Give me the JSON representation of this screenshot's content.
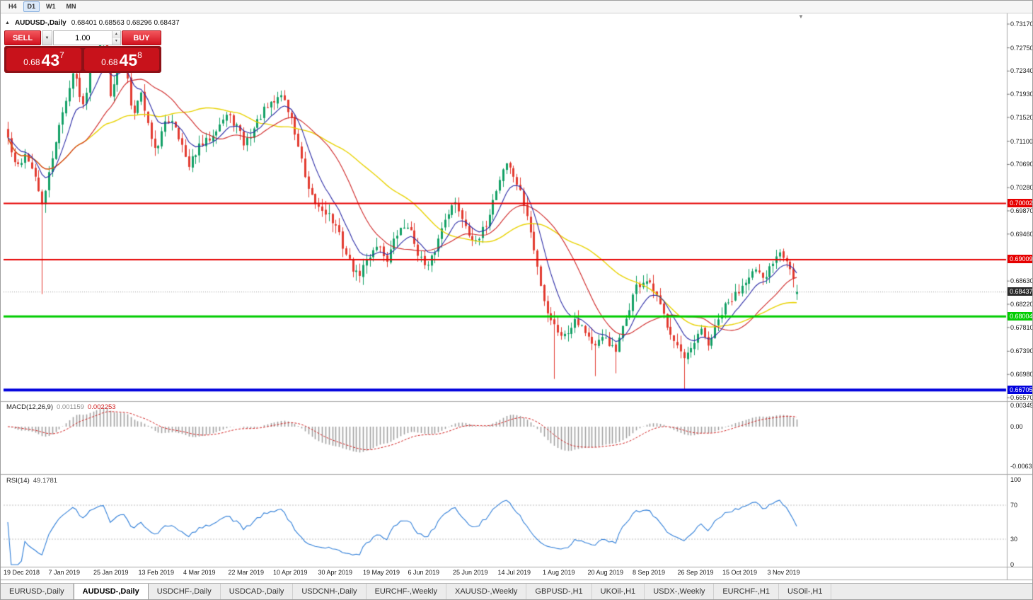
{
  "toolbar": {
    "timeframes": [
      {
        "label": "H4",
        "active": false
      },
      {
        "label": "D1",
        "active": true
      },
      {
        "label": "W1",
        "active": false
      },
      {
        "label": "MN",
        "active": false
      }
    ]
  },
  "icons": {
    "collapse": "▲",
    "dropdown": "▼",
    "spin_up": "▴",
    "spin_down": "▾",
    "scroll_marker": "▼"
  },
  "chart": {
    "title": {
      "symbol_period": "AUDUSD-,Daily",
      "ohlc": "0.68401 0.68563 0.68296 0.68437"
    },
    "trade_panel": {
      "sell_label": "SELL",
      "buy_label": "BUY",
      "volume": "1.00",
      "sell_price": {
        "base": "0.68",
        "big": "43",
        "sup": "7"
      },
      "buy_price": {
        "base": "0.68",
        "big": "45",
        "sup": "8"
      }
    },
    "y_axis_ticks": [
      "0.73170",
      "0.72750",
      "0.72340",
      "0.71930",
      "0.71520",
      "0.71100",
      "0.70690",
      "0.70280",
      "0.69870",
      "0.69460",
      "0.68630",
      "0.68220",
      "0.67810",
      "0.67390",
      "0.66980",
      "0.66570"
    ],
    "price_lines": [
      {
        "value": 0.70002,
        "label": "0.70002",
        "color": "#e60000",
        "width": 2
      },
      {
        "value": 0.69009,
        "label": "0.69009",
        "color": "#e60000",
        "width": 2
      },
      {
        "value": 0.68004,
        "label": "0.68004",
        "color": "#00cc00",
        "width": 3
      },
      {
        "value": 0.66705,
        "label": "0.66705",
        "color": "#0000dd",
        "width": 4
      }
    ],
    "current_price": {
      "value": 0.68437,
      "label": "0.68437",
      "color": "#2b2b2b"
    }
  },
  "macd": {
    "name": "MACD(12,26,9)",
    "value_main": "0.001159",
    "value_signal": "0.002253",
    "axis": [
      {
        "label": "0.00349",
        "value": 0.00349
      },
      {
        "label": "0.00",
        "value": 0
      },
      {
        "label": "-0.00637",
        "value": -0.00637
      }
    ]
  },
  "rsi": {
    "name": "RSI(14)",
    "value": "49.1781",
    "axis": [
      {
        "label": "100",
        "value": 100
      },
      {
        "label": "70",
        "value": 70
      },
      {
        "label": "30",
        "value": 30
      },
      {
        "label": "0",
        "value": 0
      }
    ],
    "levels": [
      70,
      30
    ]
  },
  "x_axis": {
    "dates": [
      "19 Dec 2018",
      "7 Jan 2019",
      "25 Jan 2019",
      "13 Feb 2019",
      "4 Mar 2019",
      "22 Mar 2019",
      "10 Apr 2019",
      "30 Apr 2019",
      "19 May 2019",
      "6 Jun 2019",
      "25 Jun 2019",
      "14 Jul 2019",
      "1 Aug 2019",
      "20 Aug 2019",
      "8 Sep 2019",
      "26 Sep 2019",
      "15 Oct 2019",
      "3 Nov 2019"
    ]
  },
  "tabs": [
    {
      "label": "EURUSD-,Daily",
      "active": false
    },
    {
      "label": "AUDUSD-,Daily",
      "active": true
    },
    {
      "label": "USDCHF-,Daily",
      "active": false
    },
    {
      "label": "USDCAD-,Daily",
      "active": false
    },
    {
      "label": "USDCNH-,Daily",
      "active": false
    },
    {
      "label": "EURCHF-,Weekly",
      "active": false
    },
    {
      "label": "XAUUSD-,Weekly",
      "active": false
    },
    {
      "label": "GBPUSD-,H1",
      "active": false
    },
    {
      "label": "UKOil-,H1",
      "active": false
    },
    {
      "label": "USDX-,Weekly",
      "active": false
    },
    {
      "label": "EURCHF-,H1",
      "active": false
    },
    {
      "label": "USOil-,H1",
      "active": false
    }
  ],
  "colors": {
    "up": "#13a066",
    "down": "#e23b30",
    "ma_fast": "#2b2ba6",
    "ma_mid": "#cf2525",
    "ma_slow": "#e8d200",
    "macd_hist": "#a0a0a0",
    "macd_signal": "#d02020",
    "rsi_line": "#2f7ed8",
    "level_dash": "#bdbdbd",
    "separator": "#a8a8a8",
    "axis_text": "#1a1a1a"
  },
  "chart_data": {
    "type": "candlestick",
    "symbol": "AUDUSD",
    "timeframe": "Daily",
    "bars": 232,
    "last_ohlc": {
      "open": 0.68401,
      "high": 0.68563,
      "low": 0.68296,
      "close": 0.68437
    },
    "y_range": [
      0.6657,
      0.7317
    ],
    "levels": [
      0.70002,
      0.69009,
      0.68004,
      0.66705
    ],
    "price_anchors": [
      [
        0.0,
        0.7115
      ],
      [
        0.01,
        0.706
      ],
      [
        0.023,
        0.709
      ],
      [
        0.035,
        0.704
      ],
      [
        0.045,
        0.6995
      ],
      [
        0.053,
        0.706
      ],
      [
        0.063,
        0.713
      ],
      [
        0.073,
        0.7175
      ],
      [
        0.081,
        0.7235
      ],
      [
        0.088,
        0.721
      ],
      [
        0.096,
        0.717
      ],
      [
        0.103,
        0.7235
      ],
      [
        0.113,
        0.727
      ],
      [
        0.123,
        0.7285
      ],
      [
        0.131,
        0.718
      ],
      [
        0.138,
        0.7235
      ],
      [
        0.148,
        0.7255
      ],
      [
        0.158,
        0.716
      ],
      [
        0.169,
        0.7195
      ],
      [
        0.179,
        0.713
      ],
      [
        0.189,
        0.709
      ],
      [
        0.199,
        0.7145
      ],
      [
        0.209,
        0.715
      ],
      [
        0.219,
        0.711
      ],
      [
        0.229,
        0.706
      ],
      [
        0.239,
        0.7095
      ],
      [
        0.252,
        0.711
      ],
      [
        0.264,
        0.7135
      ],
      [
        0.277,
        0.7155
      ],
      [
        0.289,
        0.714
      ],
      [
        0.299,
        0.7105
      ],
      [
        0.309,
        0.7125
      ],
      [
        0.322,
        0.716
      ],
      [
        0.335,
        0.7175
      ],
      [
        0.347,
        0.7195
      ],
      [
        0.36,
        0.7145
      ],
      [
        0.37,
        0.709
      ],
      [
        0.38,
        0.702
      ],
      [
        0.392,
        0.6995
      ],
      [
        0.405,
        0.6985
      ],
      [
        0.418,
        0.695
      ],
      [
        0.43,
        0.6905
      ],
      [
        0.443,
        0.687
      ],
      [
        0.455,
        0.69
      ],
      [
        0.468,
        0.693
      ],
      [
        0.48,
        0.69
      ],
      [
        0.493,
        0.6945
      ],
      [
        0.506,
        0.6965
      ],
      [
        0.518,
        0.692
      ],
      [
        0.531,
        0.688
      ],
      [
        0.543,
        0.6925
      ],
      [
        0.556,
        0.6985
      ],
      [
        0.568,
        0.7
      ],
      [
        0.581,
        0.696
      ],
      [
        0.594,
        0.6925
      ],
      [
        0.606,
        0.6965
      ],
      [
        0.619,
        0.7025
      ],
      [
        0.631,
        0.7075
      ],
      [
        0.644,
        0.704
      ],
      [
        0.657,
        0.6985
      ],
      [
        0.669,
        0.69
      ],
      [
        0.682,
        0.6815
      ],
      [
        0.694,
        0.678
      ],
      [
        0.707,
        0.6765
      ],
      [
        0.719,
        0.68
      ],
      [
        0.732,
        0.6775
      ],
      [
        0.744,
        0.6745
      ],
      [
        0.757,
        0.6765
      ],
      [
        0.77,
        0.6735
      ],
      [
        0.782,
        0.679
      ],
      [
        0.795,
        0.685
      ],
      [
        0.808,
        0.6865
      ],
      [
        0.82,
        0.684
      ],
      [
        0.833,
        0.6795
      ],
      [
        0.845,
        0.676
      ],
      [
        0.858,
        0.672
      ],
      [
        0.868,
        0.6745
      ],
      [
        0.878,
        0.6775
      ],
      [
        0.888,
        0.675
      ],
      [
        0.898,
        0.6785
      ],
      [
        0.908,
        0.6815
      ],
      [
        0.918,
        0.683
      ],
      [
        0.928,
        0.685
      ],
      [
        0.938,
        0.6875
      ],
      [
        0.948,
        0.688
      ],
      [
        0.958,
        0.686
      ],
      [
        0.968,
        0.6895
      ],
      [
        0.978,
        0.692
      ],
      [
        0.986,
        0.6905
      ],
      [
        0.994,
        0.6875
      ],
      [
        1.0,
        0.6844
      ]
    ],
    "spike_lows": [
      [
        0.045,
        0.684
      ],
      [
        0.694,
        0.669
      ],
      [
        0.744,
        0.6695
      ],
      [
        0.77,
        0.67
      ],
      [
        0.858,
        0.6672
      ]
    ],
    "indicators": {
      "macd": {
        "fast": 12,
        "slow": 26,
        "signal": 9
      },
      "rsi": {
        "period": 14
      },
      "moving_averages": [
        {
          "type": "ema",
          "period": 9,
          "color_key": "ma_fast"
        },
        {
          "type": "sma",
          "period": 22,
          "color_key": "ma_mid"
        },
        {
          "type": "sma",
          "period": 45,
          "color_key": "ma_slow"
        }
      ]
    }
  }
}
